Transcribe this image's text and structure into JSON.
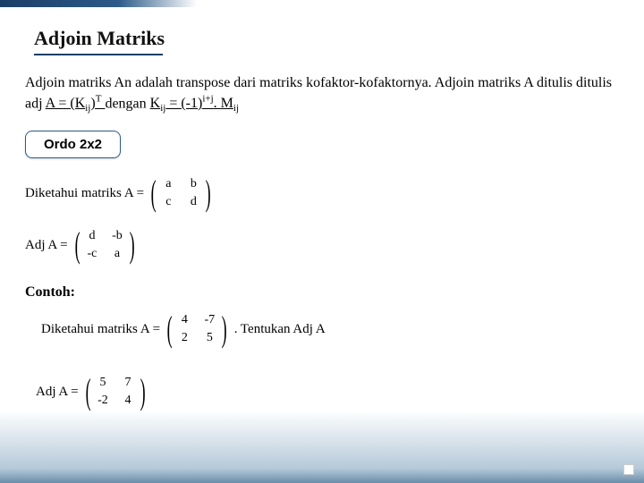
{
  "title": "Adjoin Matriks",
  "intro": {
    "part1": "Adjoin matriks An adalah transpose dari matriks kofaktor-kofaktornya. Adjoin matriks A ditulis ditulis adj ",
    "formula_lhs": "A = (K",
    "k_sub": "ij",
    "part2": ")",
    "t_sup": "T",
    "part3": " dengan ",
    "kij_lhs": "K",
    "kij_sub": "ij",
    "part4": " = (-1)",
    "exp": "i+j",
    "part5": ". ",
    "m": "M",
    "m_sub": "ij"
  },
  "badge": "Ordo 2x2",
  "known_label": "Diketahui matriks A =",
  "known_matrix": {
    "a": "a",
    "b": "b",
    "c": "c",
    "d": "d"
  },
  "adj_label": "Adj A =",
  "adj_matrix": {
    "a": "d",
    "b": "-b",
    "c": "-c",
    "d": "a"
  },
  "contoh": "Contoh:",
  "ex1_prefix": "Diketahui matriks A =",
  "ex1_matrix": {
    "a": "4",
    "b": "-7",
    "c": "2",
    "d": "5"
  },
  "ex1_suffix": ". Tentukan Adj A",
  "ex2_label": "Adj A =",
  "ex2_matrix": {
    "a": "5",
    "b": "7",
    "c": "-2",
    "d": "4"
  },
  "colors": {
    "accent": "#1a3e66",
    "badge_border": "#2d5a8a",
    "bg_bottom": "#6a8da8"
  }
}
